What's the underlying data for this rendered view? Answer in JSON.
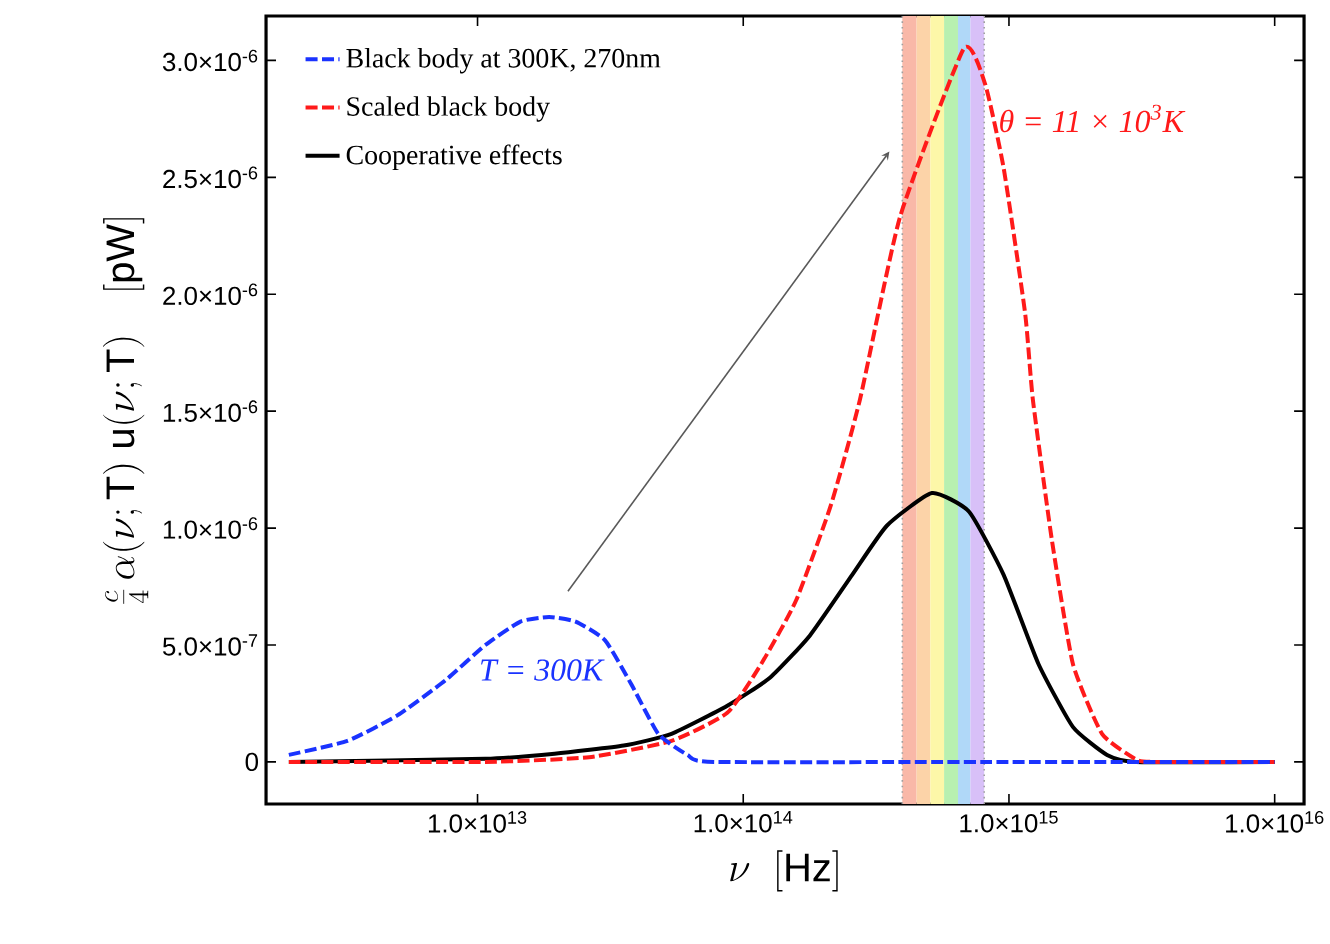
{
  "chart_data": {
    "type": "line",
    "xlabel": "\\nu\\ \\ [\\mathrm{Hz}]",
    "ylabel": "\\frac{c}{4}\\,\\alpha(\\nu;\\mathrm{T})\\;\\mathrm{u}(\\nu;\\mathrm{T})\\quad[\\mathrm{pW}]",
    "log": "x",
    "xlim": [
      1600000000000.0,
      1.29e+16
    ],
    "ylim": [
      -1.8e-07,
      3.19e-06
    ],
    "xticks": [
      {
        "value": 10000000000000.0,
        "label": "1.0×10$^{13}$"
      },
      {
        "value": 100000000000000.0,
        "label": "1.0×10$^{14}$"
      },
      {
        "value": 1000000000000000.0,
        "label": "1.0×10$^{15}$"
      },
      {
        "value": 1e+16,
        "label": "1.0×10$^{16}$"
      }
    ],
    "yticks": [
      0,
      {
        "value": 5e-07,
        "label": "5.0×10$^{-7}$"
      },
      {
        "value": 1e-06,
        "label": "1.0×10$^{-6}$"
      },
      {
        "value": 1.5e-06,
        "label": "1.5×10$^{-6}$"
      },
      {
        "value": 2e-06,
        "label": "2.0×10$^{-6}$"
      },
      {
        "value": 2.5e-06,
        "label": "2.5×10$^{-6}$"
      },
      {
        "value": 3e-06,
        "label": "3.0×10$^{-6}$"
      }
    ],
    "legend": "top left",
    "grid": false,
    "series": [
      {
        "name": "Black body at 300K, 270nm",
        "color": "#1a33ff",
        "line_style": "dashed",
        "x": [
          1950000000000.0,
          3240000000000.0,
          5010000000000.0,
          7590000000000.0,
          10700000000000.0,
          14500000000000.0,
          18600000000000.0,
          23400000000000.0,
          30200000000000.0,
          38000000000000.0,
          47900000000000.0,
          61700000000000.0,
          77600000000000.0,
          1000000000000000.0,
          1e+16
        ],
        "values": [
          3e-08,
          9e-08,
          2e-07,
          3.5e-07,
          5e-07,
          6e-07,
          6.2e-07,
          6e-07,
          5.2e-07,
          3.3e-07,
          1.2e-07,
          3e-08,
          0,
          0,
          0
        ]
      },
      {
        "name": "Scaled black body",
        "color": "#ff1a1a",
        "line_style": "dashed",
        "x": [
          1950000000000.0,
          10700000000000.0,
          26300000000000.0,
          53700000000000.0,
          87100000000000.0,
          117000000000000.0,
          158000000000000.0,
          214000000000000.0,
          275000000000000.0,
          389000000000000.0,
          676000000000000.0,
          813000000000000.0,
          955000000000000.0,
          1150000000000000.0,
          1230000000000000.0,
          1450000000000000.0,
          1740000000000000.0,
          2240000000000000.0,
          3020000000000000.0,
          3550000000000000.0,
          1e+16
        ],
        "values": [
          0,
          0,
          2e-08,
          9e-08,
          2.1e-07,
          4.2e-07,
          6.9e-07,
          1.1e-06,
          1.55e-06,
          2.33e-06,
          3.05e-06,
          2.9e-06,
          2.54e-06,
          1.92e-06,
          1.55e-06,
          9.5e-07,
          4.2e-07,
          1.2e-07,
          1e-08,
          0,
          0
        ]
      },
      {
        "name": "Cooperative effects",
        "color": "#000000",
        "line_style": "solid",
        "x": [
          1950000000000.0,
          10700000000000.0,
          19500000000000.0,
          35500000000000.0,
          53700000000000.0,
          87100000000000.0,
          126000000000000.0,
          178000000000000.0,
          257000000000000.0,
          347000000000000.0,
          513000000000000.0,
          708000000000000.0,
          955000000000000.0,
          1290000000000000.0,
          1740000000000000.0,
          2340000000000000.0,
          3020000000000000.0,
          1e+16
        ],
        "values": [
          0,
          1.3e-08,
          3.5e-08,
          7e-08,
          1.2e-07,
          2.4e-07,
          3.6e-07,
          5.4e-07,
          8e-07,
          1.01e-06,
          1.15e-06,
          1.07e-06,
          8e-07,
          4.2e-07,
          1.5e-07,
          3e-08,
          0,
          0
        ]
      }
    ],
    "bands": [
      {
        "axis": "x",
        "from": 397000000000000.0,
        "to": 449000000000000.0,
        "color": "#f9b8a8"
      },
      {
        "axis": "x",
        "from": 449000000000000.0,
        "to": 506000000000000.0,
        "color": "#fcd3a8"
      },
      {
        "axis": "x",
        "from": 506000000000000.0,
        "to": 570000000000000.0,
        "color": "#fdf7a8"
      },
      {
        "axis": "x",
        "from": 570000000000000.0,
        "to": 643000000000000.0,
        "color": "#b8f0b0"
      },
      {
        "axis": "x",
        "from": 643000000000000.0,
        "to": 716000000000000.0,
        "color": "#b0d8f8"
      },
      {
        "axis": "x",
        "from": 716000000000000.0,
        "to": 807000000000000.0,
        "color": "#d8c0f8"
      }
    ],
    "ref_lines": [
      {
        "axis": "x",
        "value": 397000000000000.0,
        "color": "#a0a0a0",
        "line_style": "dotted"
      },
      {
        "axis": "x",
        "value": 807000000000000.0,
        "color": "#a0a0a0",
        "line_style": "dotted"
      }
    ],
    "annotations": [
      "θ = 11 × 10$^{3}$K",
      "T = 300K"
    ]
  }
}
